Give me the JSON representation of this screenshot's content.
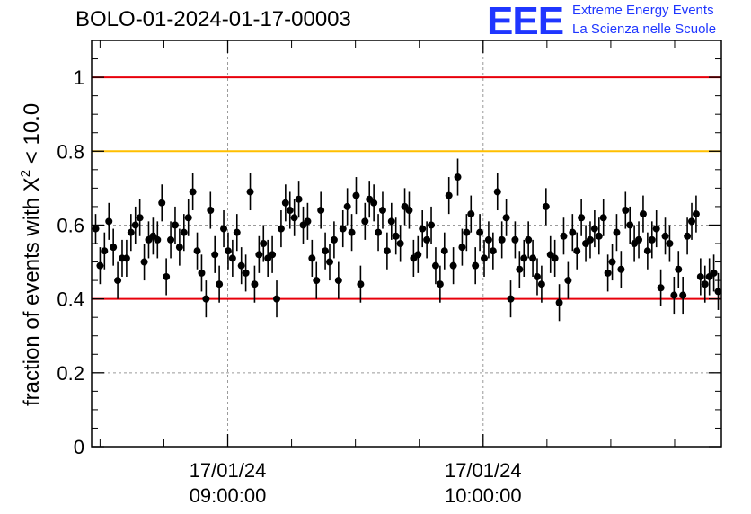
{
  "title": "BOLO-01-2024-01-17-00003",
  "logo": {
    "mark": "EEE",
    "line1": "Extreme Energy Events",
    "line2": "La Scienza nelle Scuole",
    "color": "#1f36ff"
  },
  "chart_data": {
    "type": "scatter",
    "ylabel_prefix": "fraction of events with ",
    "ylabel_symbol": "X",
    "ylabel_sup": "2",
    "ylabel_suffix": " < 10.0",
    "ylim": [
      0,
      1.1
    ],
    "yticks": [
      {
        "value": 0,
        "label": "0"
      },
      {
        "value": 0.2,
        "label": "0.2"
      },
      {
        "value": 0.4,
        "label": "0.4"
      },
      {
        "value": 0.6,
        "label": "0.6"
      },
      {
        "value": 0.8,
        "label": "0.8"
      },
      {
        "value": 1,
        "label": "1"
      }
    ],
    "xlim_minutes": [
      8.467,
      10.933
    ],
    "xlim": [
      "08:28",
      "10:56"
    ],
    "xticks": [
      {
        "hour": 9,
        "line1": "17/01/24",
        "line2": "09:00:00"
      },
      {
        "hour": 10,
        "line1": "17/01/24",
        "line2": "10:00:00"
      }
    ],
    "minor_xticks_hours": [
      8.5,
      8.75,
      9.25,
      9.5,
      9.75,
      10.25,
      10.5,
      10.75
    ],
    "grid": true,
    "reference_lines": [
      {
        "y": 1.0,
        "color": "#e8000b"
      },
      {
        "y": 0.8,
        "color": "#ffbf00"
      },
      {
        "y": 0.4,
        "color": "#e8000b"
      }
    ],
    "marker_color": "#000000",
    "values": [
      0.59,
      0.49,
      0.53,
      0.61,
      0.54,
      0.45,
      0.51,
      0.51,
      0.58,
      0.6,
      0.62,
      0.5,
      0.56,
      0.57,
      0.56,
      0.66,
      0.46,
      0.56,
      0.6,
      0.54,
      0.58,
      0.62,
      0.69,
      0.53,
      0.47,
      0.4,
      0.64,
      0.52,
      0.44,
      0.59,
      0.53,
      0.51,
      0.58,
      0.49,
      0.47,
      0.69,
      0.44,
      0.52,
      0.55,
      0.51,
      0.52,
      0.4,
      0.59,
      0.66,
      0.64,
      0.62,
      0.67,
      0.6,
      0.61,
      0.51,
      0.45,
      0.64,
      0.53,
      0.5,
      0.56,
      0.45,
      0.59,
      0.65,
      0.58,
      0.68,
      0.44,
      0.61,
      0.67,
      0.66,
      0.58,
      0.64,
      0.53,
      0.61,
      0.57,
      0.55,
      0.65,
      0.64,
      0.51,
      0.52,
      0.59,
      0.56,
      0.6,
      0.49,
      0.44,
      0.53,
      0.68,
      0.49,
      0.73,
      0.54,
      0.58,
      0.63,
      0.49,
      0.58,
      0.51,
      0.56,
      0.53,
      0.69,
      0.56,
      0.62,
      0.4,
      0.56,
      0.48,
      0.51,
      0.56,
      0.51,
      0.46,
      0.44,
      0.65,
      0.52,
      0.51,
      0.39,
      0.57,
      0.45,
      0.58,
      0.53,
      0.62,
      0.55,
      0.56,
      0.59,
      0.57,
      0.62,
      0.47,
      0.5,
      0.58,
      0.48,
      0.64,
      0.6,
      0.55,
      0.56,
      0.63,
      0.53,
      0.56,
      0.59,
      0.43,
      0.57,
      0.55,
      0.41,
      0.48,
      0.41,
      0.57,
      0.61,
      0.63,
      0.46,
      0.44,
      0.46,
      0.47,
      0.42
    ],
    "errors": [
      0.04,
      0.05,
      0.05,
      0.05,
      0.05,
      0.05,
      0.05,
      0.05,
      0.05,
      0.05,
      0.05,
      0.05,
      0.05,
      0.05,
      0.05,
      0.05,
      0.05,
      0.05,
      0.05,
      0.05,
      0.05,
      0.05,
      0.05,
      0.05,
      0.05,
      0.05,
      0.05,
      0.05,
      0.05,
      0.05,
      0.05,
      0.05,
      0.05,
      0.05,
      0.05,
      0.05,
      0.05,
      0.05,
      0.05,
      0.05,
      0.05,
      0.05,
      0.05,
      0.05,
      0.05,
      0.05,
      0.05,
      0.05,
      0.05,
      0.05,
      0.05,
      0.05,
      0.05,
      0.05,
      0.05,
      0.05,
      0.05,
      0.05,
      0.05,
      0.05,
      0.05,
      0.05,
      0.05,
      0.05,
      0.05,
      0.05,
      0.05,
      0.05,
      0.05,
      0.05,
      0.05,
      0.05,
      0.05,
      0.05,
      0.05,
      0.05,
      0.05,
      0.05,
      0.05,
      0.05,
      0.05,
      0.05,
      0.05,
      0.05,
      0.05,
      0.05,
      0.05,
      0.05,
      0.05,
      0.05,
      0.05,
      0.05,
      0.05,
      0.05,
      0.05,
      0.05,
      0.05,
      0.05,
      0.05,
      0.05,
      0.05,
      0.05,
      0.05,
      0.05,
      0.05,
      0.05,
      0.05,
      0.05,
      0.05,
      0.05,
      0.05,
      0.05,
      0.05,
      0.05,
      0.05,
      0.05,
      0.05,
      0.05,
      0.05,
      0.05,
      0.05,
      0.05,
      0.05,
      0.05,
      0.05,
      0.05,
      0.05,
      0.05,
      0.05,
      0.05,
      0.05,
      0.05,
      0.05,
      0.05,
      0.05,
      0.05,
      0.05,
      0.05,
      0.05,
      0.05,
      0.05,
      0.05
    ]
  }
}
